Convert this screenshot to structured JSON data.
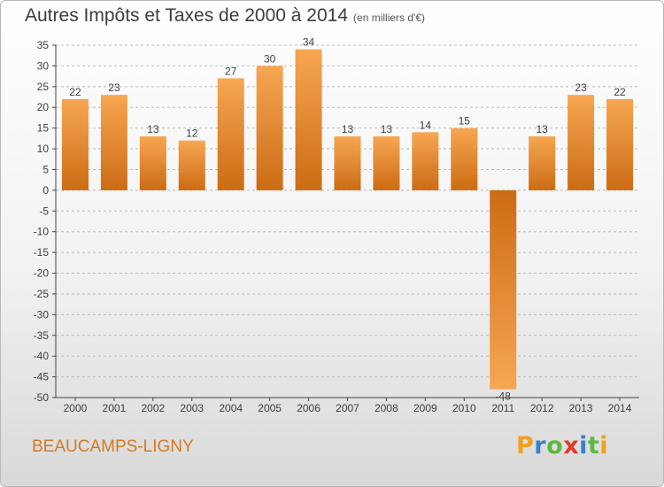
{
  "header": {
    "title": "Autres Impôts et Taxes de 2000 à 2014",
    "unit": "(en milliers d'€)"
  },
  "footer": {
    "commune": "BEAUCAMPS-LIGNY",
    "logo": "Proxiti",
    "logo_letter_colors": [
      "#f0a020",
      "#3a7fd0",
      "#5cb840",
      "#e03a2a",
      "#3a7fd0",
      "#5cb840",
      "#f0a020"
    ]
  },
  "colors": {
    "bar_light": "#f7a652",
    "bar_dark": "#cc6c14",
    "grid": "#b9b9b9",
    "axis": "#444444",
    "text": "#3c3c3c"
  },
  "chart_data": {
    "type": "bar",
    "title": "Autres Impôts et Taxes de 2000 à 2014",
    "subtitle": "(en milliers d'€)",
    "categories": [
      "2000",
      "2001",
      "2002",
      "2003",
      "2004",
      "2005",
      "2006",
      "2007",
      "2008",
      "2009",
      "2010",
      "2011",
      "2012",
      "2013",
      "2014"
    ],
    "values": [
      22,
      23,
      13,
      12,
      27,
      30,
      34,
      13,
      13,
      14,
      15,
      -48,
      13,
      23,
      22
    ],
    "data_labels": [
      "22",
      "23",
      "13",
      "12",
      "27",
      "30",
      "34",
      "13",
      "13",
      "14",
      "15",
      "-48",
      "13",
      "23",
      "22"
    ],
    "yticks": [
      35,
      30,
      25,
      20,
      15,
      10,
      5,
      0,
      -5,
      -10,
      -15,
      -20,
      -25,
      -30,
      -35,
      -40,
      -45,
      -50
    ],
    "ylim": [
      -50,
      35
    ],
    "grid": true,
    "legend": "none",
    "xlabel": "",
    "ylabel": ""
  }
}
